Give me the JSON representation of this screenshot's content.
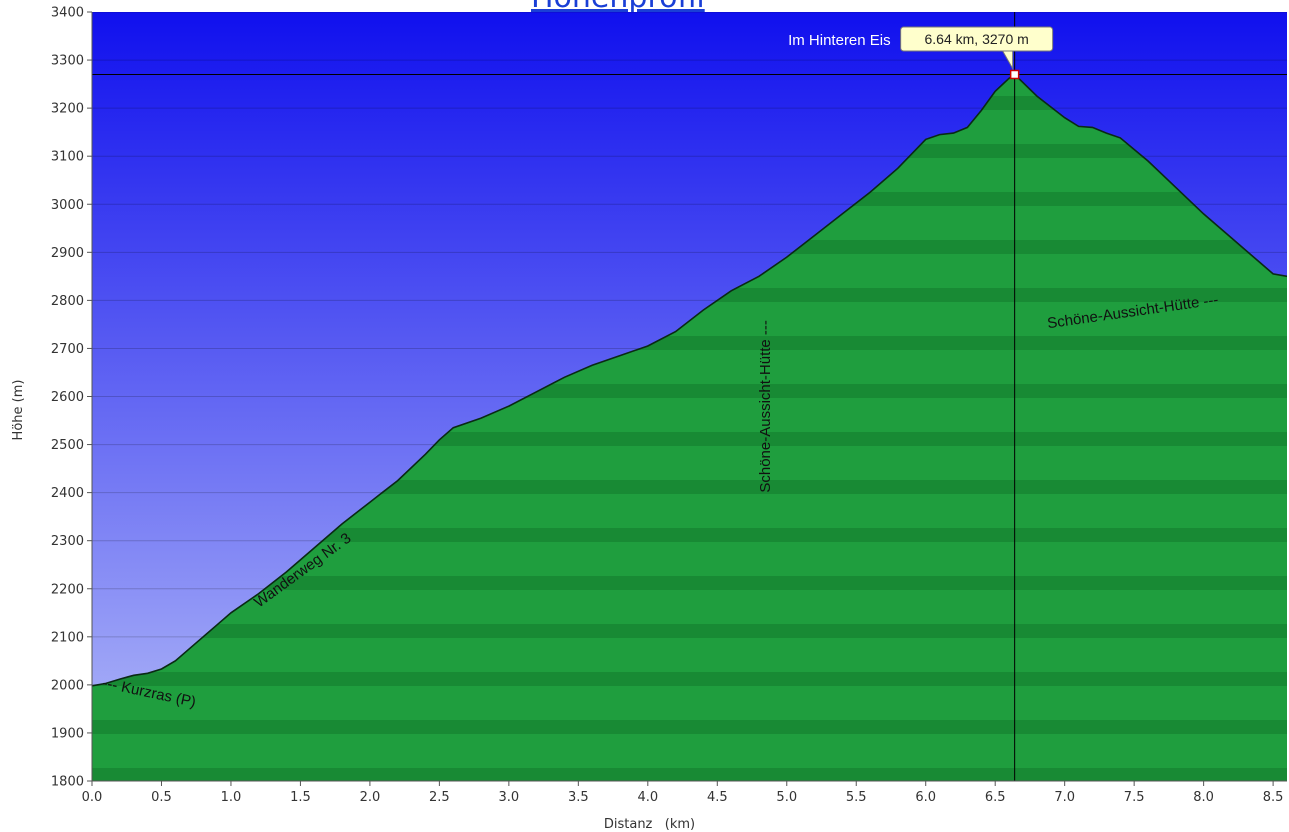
{
  "header": {
    "title": "Höhenprofil"
  },
  "chart_data": {
    "type": "area",
    "xlabel": "Distanz   (km)",
    "ylabel": "Höhe (m)",
    "xlim": [
      0,
      8.6
    ],
    "ylim": [
      1800,
      3400
    ],
    "x_ticks": [
      0.0,
      0.5,
      1.0,
      1.5,
      2.0,
      2.5,
      3.0,
      3.5,
      4.0,
      4.5,
      5.0,
      5.5,
      6.0,
      6.5,
      7.0,
      7.5,
      8.0,
      8.5
    ],
    "y_ticks": [
      1800,
      1900,
      2000,
      2100,
      2200,
      2300,
      2400,
      2500,
      2600,
      2700,
      2800,
      2900,
      3000,
      3100,
      3200,
      3300,
      3400
    ],
    "grid": true,
    "series": [
      {
        "x": [
          0.0,
          0.1,
          0.2,
          0.3,
          0.4,
          0.5,
          0.6,
          0.7,
          0.8,
          0.9,
          1.0,
          1.2,
          1.4,
          1.6,
          1.8,
          2.0,
          2.2,
          2.4,
          2.5,
          2.6,
          2.8,
          3.0,
          3.2,
          3.4,
          3.6,
          3.8,
          4.0,
          4.2,
          4.4,
          4.6,
          4.8,
          5.0,
          5.2,
          5.4,
          5.6,
          5.8,
          5.9,
          6.0,
          6.1,
          6.2,
          6.3,
          6.4,
          6.5,
          6.6,
          6.64,
          6.8,
          7.0,
          7.1,
          7.2,
          7.3,
          7.4,
          7.6,
          7.8,
          8.0,
          8.2,
          8.4,
          8.5,
          8.6
        ],
        "y": [
          1998,
          2003,
          2012,
          2020,
          2024,
          2033,
          2050,
          2075,
          2100,
          2125,
          2150,
          2190,
          2235,
          2285,
          2335,
          2380,
          2425,
          2480,
          2510,
          2535,
          2555,
          2580,
          2610,
          2640,
          2665,
          2685,
          2705,
          2735,
          2780,
          2820,
          2850,
          2890,
          2935,
          2980,
          3025,
          3075,
          3105,
          3135,
          3145,
          3148,
          3160,
          3195,
          3235,
          3262,
          3270,
          3225,
          3180,
          3162,
          3160,
          3148,
          3138,
          3090,
          3035,
          2980,
          2930,
          2880,
          2855,
          2850
        ]
      }
    ],
    "marker": {
      "x": 6.64,
      "y": 3270,
      "name": "Im Hinteren Eis",
      "label": "6.64 km, 3270 m"
    },
    "annotations": [
      {
        "text": "--- Kurzras (P)",
        "x": 0.07,
        "y": 1995,
        "rotate": 12
      },
      {
        "text": "Wanderweg Nr. 3",
        "x": 1.2,
        "y": 2160,
        "rotate": -36
      },
      {
        "text": "Schöne-Aussicht-Hütte ---",
        "x": 4.88,
        "y": 2400,
        "rotate": -90
      },
      {
        "text": "Schöne-Aussicht-Hütte ---",
        "x": 6.88,
        "y": 2742,
        "rotate": -8
      }
    ],
    "colors": {
      "sky_top": "#1010ee",
      "sky_bottom": "#b4bcf8",
      "terrain": "#1f9e3e",
      "terrain_dark": "#127a2c",
      "outline": "#0a2a14",
      "marker_box": "#ffffcc"
    }
  }
}
